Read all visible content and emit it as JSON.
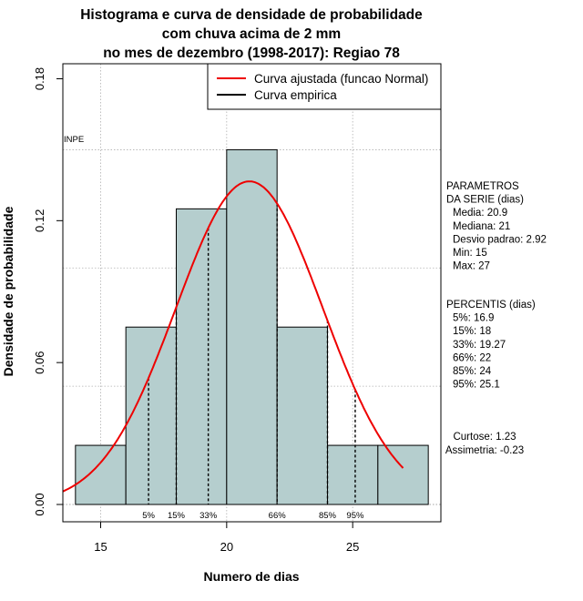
{
  "chart_data": {
    "type": "bar",
    "title_lines": [
      "Histograma e curva de densidade de probabilidade",
      "com chuva acima de 2 mm",
      "no mes de dezembro (1998-2017): Regiao 78"
    ],
    "xlabel": "Numero de dias",
    "ylabel": "Densidade de probabilidade",
    "xlim": [
      13.5,
      28.5
    ],
    "ylim": [
      0,
      0.18
    ],
    "x_ticks": [
      15,
      20,
      25
    ],
    "y_ticks": [
      0.0,
      0.06,
      0.12,
      0.18
    ],
    "y_tick_labels": [
      "0.00",
      "0.06",
      "0.12",
      "0.18"
    ],
    "grid_x": [
      15,
      20,
      25
    ],
    "grid_y": [
      0.05,
      0.1,
      0.15
    ],
    "bins": [
      {
        "from": 14,
        "to": 16,
        "density": 0.025
      },
      {
        "from": 16,
        "to": 18,
        "density": 0.075
      },
      {
        "from": 18,
        "to": 20,
        "density": 0.125
      },
      {
        "from": 20,
        "to": 22,
        "density": 0.15
      },
      {
        "from": 22,
        "to": 24,
        "density": 0.075
      },
      {
        "from": 24,
        "to": 26,
        "density": 0.025
      },
      {
        "from": 26,
        "to": 28,
        "density": 0.025
      }
    ],
    "normal_fit": {
      "mean": 20.9,
      "sd": 2.92,
      "x_from": 13.5,
      "x_to": 27.0
    },
    "percentile_lines": [
      {
        "label": "5%",
        "x": 16.9
      },
      {
        "label": "15%",
        "x": 18
      },
      {
        "label": "33%",
        "x": 19.27
      },
      {
        "label": "66%",
        "x": 22
      },
      {
        "label": "85%",
        "x": 24
      },
      {
        "label": "95%",
        "x": 25.1
      }
    ],
    "legend": [
      {
        "label": "Curva ajustada (funcao Normal)",
        "color": "#ee0000"
      },
      {
        "label": "Curva empirica",
        "color": "#000000"
      }
    ],
    "legend_position": "top-right",
    "watermark": "INPE",
    "side_panel": {
      "parametros": [
        "PARAMETROS",
        "DA SERIE (dias)",
        "Media: 20.9",
        "Mediana: 21",
        "Desvio padrao: 2.92",
        "Min: 15",
        "Max: 27"
      ],
      "percentis": [
        "PERCENTIS (dias)",
        "5%: 16.9",
        "15%: 18",
        "33%: 19.27",
        "66%: 22",
        "85%: 24",
        "95%: 25.1"
      ],
      "shape": [
        "Curtose: 1.23",
        "Assimetria: -0.23"
      ]
    },
    "colors": {
      "bar_fill": "#b5cece",
      "normal_curve": "#ee0000",
      "grid": "#b0b0b0"
    }
  }
}
